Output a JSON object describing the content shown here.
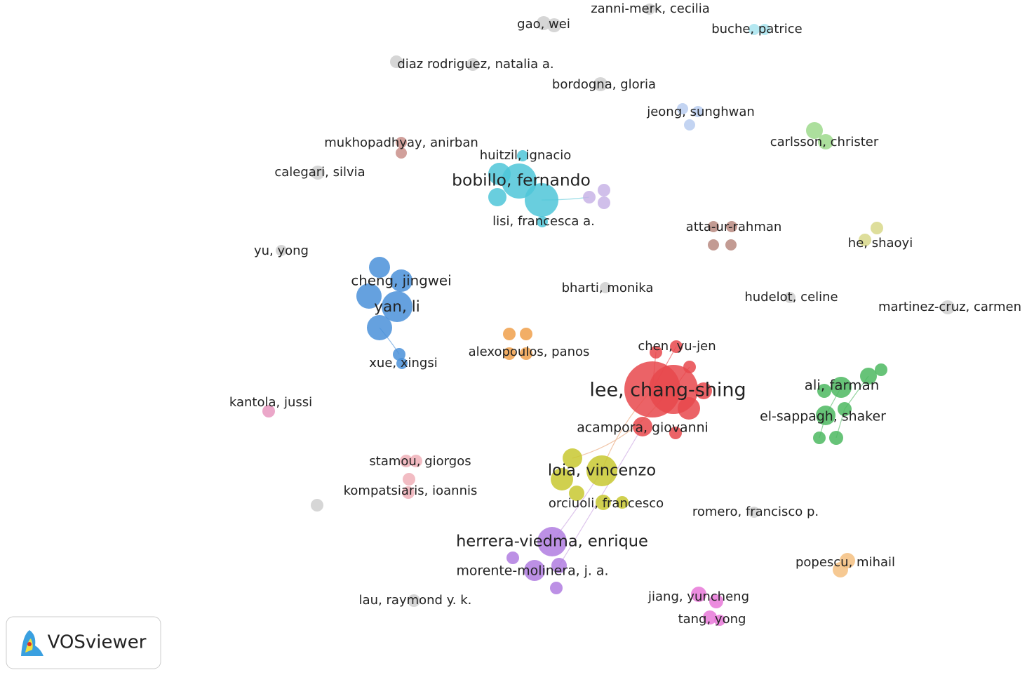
{
  "nodes": [
    {
      "label": "zanni-merk, cecilia"
    },
    {
      "label": "gao, wei"
    },
    {
      "label": "buche, patrice"
    },
    {
      "label": "diaz rodriguez, natalia a."
    },
    {
      "label": "bordogna, gloria"
    },
    {
      "label": "jeong, sunghwan"
    },
    {
      "label": "carlsson, christer"
    },
    {
      "label": "mukhopadhyay, anirban"
    },
    {
      "label": "huitzil, ignacio"
    },
    {
      "label": "calegari, silvia"
    },
    {
      "label": "bobillo, fernando"
    },
    {
      "label": "lisi, francesca a."
    },
    {
      "label": "atta-ur-rahman"
    },
    {
      "label": "he, shaoyi"
    },
    {
      "label": "yu, yong"
    },
    {
      "label": "cheng, jingwei"
    },
    {
      "label": "yan, li"
    },
    {
      "label": "bharti, monika"
    },
    {
      "label": "hudelot, celine"
    },
    {
      "label": "martinez-cruz, carmen"
    },
    {
      "label": "chen, yu-jen"
    },
    {
      "label": "alexopoulos, panos"
    },
    {
      "label": "xue, xingsi"
    },
    {
      "label": "lee, chang-shing"
    },
    {
      "label": "ali, farman"
    },
    {
      "label": "kantola, jussi"
    },
    {
      "label": "el-sappagh, shaker"
    },
    {
      "label": "acampora, giovanni"
    },
    {
      "label": "stamou, giorgos"
    },
    {
      "label": "loia, vincenzo"
    },
    {
      "label": "kompatsiaris, ioannis"
    },
    {
      "label": "orciuoli, francesco"
    },
    {
      "label": "romero, francisco p."
    },
    {
      "label": "herrera-viedma, enrique"
    },
    {
      "label": "morente-molinera, j. a."
    },
    {
      "label": "popescu, mihail"
    },
    {
      "label": "lau, raymond y. k."
    },
    {
      "label": "jiang, yuncheng"
    },
    {
      "label": "tang, yong"
    }
  ],
  "logo": "VOSviewer"
}
